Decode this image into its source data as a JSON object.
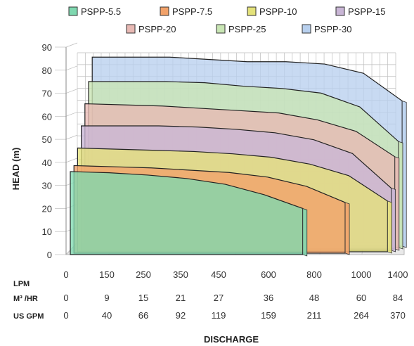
{
  "chart_data": {
    "type": "area",
    "title": "",
    "xlabel": "DISCHARGE",
    "ylabel": "HEAD (m)",
    "ylim": [
      0,
      90
    ],
    "yticks": [
      0,
      10,
      20,
      30,
      40,
      50,
      60,
      70,
      80,
      90
    ],
    "grid": true,
    "legend_position": "top",
    "x_rows": [
      {
        "label": "LPM",
        "values": [
          "0",
          "150",
          "250",
          "350",
          "450",
          "600",
          "800",
          "1000",
          "1400"
        ]
      },
      {
        "label": "M³ /HR",
        "values": [
          "0",
          "9",
          "15",
          "21",
          "27",
          "36",
          "48",
          "60",
          "84"
        ]
      },
      {
        "label": "US GPM",
        "values": [
          "0",
          "40",
          "66",
          "92",
          "119",
          "159",
          "211",
          "264",
          "370"
        ]
      }
    ],
    "x_positions": [
      0,
      1,
      2,
      3,
      4,
      5,
      6,
      7,
      8
    ],
    "series": [
      {
        "name": "PSPP-5.5",
        "color": "#7fd8b0",
        "x": [
          0,
          1,
          2,
          3,
          4,
          5,
          6
        ],
        "values": [
          36,
          35.5,
          34.5,
          33,
          30.5,
          26,
          20
        ]
      },
      {
        "name": "PSPP-7.5",
        "color": "#f2a26a",
        "x": [
          0,
          1,
          2,
          3,
          4,
          5,
          6,
          7
        ],
        "values": [
          38,
          37.5,
          37,
          36,
          35,
          33,
          29,
          22
        ]
      },
      {
        "name": "PSPP-10",
        "color": "#e4e27a",
        "x": [
          0,
          1,
          2,
          3,
          4,
          5,
          6,
          7,
          8
        ],
        "values": [
          45,
          44.5,
          44,
          43.5,
          42.5,
          41,
          38,
          33,
          22
        ]
      },
      {
        "name": "PSPP-15",
        "color": "#c9b6d6",
        "x": [
          0,
          1,
          2,
          3,
          4,
          5,
          6,
          7,
          8
        ],
        "values": [
          54,
          54,
          54,
          53.5,
          52.5,
          51,
          48,
          42,
          27
        ]
      },
      {
        "name": "PSPP-20",
        "color": "#e8b9b4",
        "x": [
          0,
          1,
          2,
          3,
          4,
          5,
          6,
          7,
          8
        ],
        "values": [
          63,
          62.5,
          62,
          61,
          60,
          59,
          56,
          51,
          40
        ]
      },
      {
        "name": "PSPP-25",
        "color": "#c9e6b4",
        "x": [
          0,
          1,
          2,
          3,
          4,
          5,
          6,
          7,
          8
        ],
        "values": [
          72,
          72,
          72,
          71.5,
          70,
          69,
          67,
          61,
          46
        ]
      },
      {
        "name": "PSPP-30",
        "color": "#b8d0ee",
        "x": [
          0,
          1,
          2,
          3,
          4,
          5,
          6,
          7,
          8
        ],
        "values": [
          82,
          82,
          82,
          81,
          80,
          80,
          79,
          75,
          63
        ]
      }
    ]
  }
}
